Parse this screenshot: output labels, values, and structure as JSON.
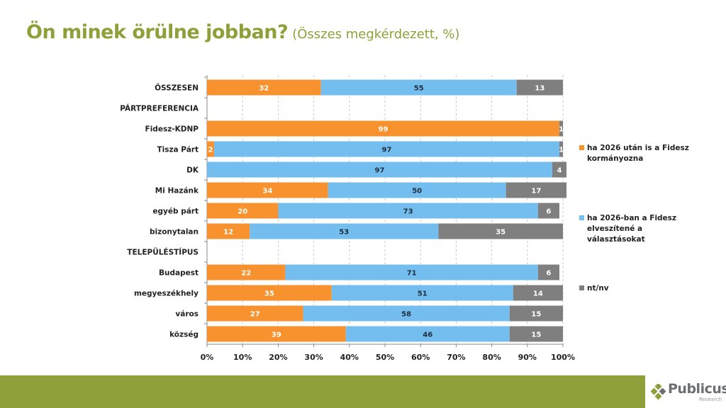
{
  "slide": {
    "title": "Ön minek örülne jobban?",
    "subtitle": "(Összes megkérdezett, %)",
    "logo_name": "Publicus",
    "logo_sub": "Research"
  },
  "colors": {
    "accent": "#8fa03a",
    "series1": "#f7922f",
    "series2": "#74bdef",
    "series3": "#7f7f7f"
  },
  "chart_data": {
    "type": "bar",
    "orientation": "horizontal",
    "stacked": "percent",
    "title": "Ön minek örülne jobban?",
    "subtitle": "(Összes megkérdezett, %)",
    "xlabel": "",
    "ylabel": "",
    "xlim": [
      0,
      100
    ],
    "x_ticks": [
      "0%",
      "10%",
      "20%",
      "30%",
      "40%",
      "50%",
      "60%",
      "70%",
      "80%",
      "90%",
      "100%"
    ],
    "grid": "vertical dashed",
    "legend_position": "right",
    "categories": [
      "ÖSSZESEN",
      "PÁRTPREFERENCIA",
      "Fidesz-KDNP",
      "Tisza Párt",
      "DK",
      "Mi Hazánk",
      "egyéb párt",
      "bizonytalan",
      "TELEPÜLÉSTÍPUS",
      "Budapest",
      "megyeszékhely",
      "város",
      "község"
    ],
    "series": [
      {
        "name": "ha 2026 után is a Fidesz kormányozna",
        "values": [
          32,
          null,
          99,
          2,
          null,
          34,
          20,
          12,
          null,
          22,
          35,
          27,
          39
        ]
      },
      {
        "name": "ha 2026-ban a Fidesz elveszítené a választásokat",
        "values": [
          55,
          null,
          null,
          97,
          97,
          50,
          73,
          53,
          null,
          71,
          51,
          58,
          46
        ]
      },
      {
        "name": "nt/nv",
        "values": [
          13,
          null,
          1,
          1,
          4,
          17,
          6,
          35,
          null,
          6,
          14,
          15,
          15
        ]
      }
    ],
    "legend": [
      {
        "lines": [
          "ha 2026 után is a Fidesz",
          "kormányozna"
        ]
      },
      {
        "lines": [
          "ha 2026-ban a Fidesz",
          "elveszítené a",
          "választásokat"
        ]
      },
      {
        "lines": [
          "nt/nv"
        ]
      }
    ]
  }
}
